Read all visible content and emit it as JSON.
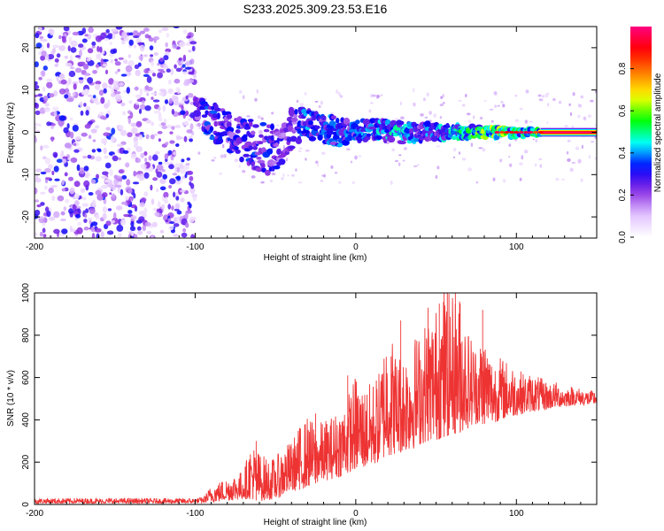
{
  "title": "S233.2025.309.23.53.E16",
  "chart_data": [
    {
      "type": "heatmap",
      "xlabel": "Height of straight line (km)",
      "ylabel": "Frequency (Hz)",
      "xlim": [
        -200,
        150
      ],
      "ylim": [
        -25,
        25
      ],
      "x_ticks": [
        -200,
        -100,
        0,
        100
      ],
      "y_ticks": [
        -20,
        -10,
        0,
        10,
        20
      ],
      "colorbar": {
        "label": "Normalized spectral amplitude",
        "range": [
          0,
          1
        ],
        "ticks": [
          "0.0",
          "0.2",
          "0.4",
          "0.6",
          "0.8"
        ],
        "colors": [
          "#ffffff",
          "#e0c0ff",
          "#8a2be2",
          "#0000ff",
          "#00ffff",
          "#00ff00",
          "#ffff00",
          "#ff8000",
          "#ff0000",
          "#ff0080"
        ]
      },
      "noise_region": {
        "x_range": [
          -200,
          -100
        ],
        "freq_range": [
          -25,
          25
        ],
        "amplitude": "0.0-0.3"
      },
      "signal_trace": {
        "x": [
          -100,
          -90,
          -80,
          -70,
          -60,
          -50,
          -40,
          -30,
          -20,
          -10,
          0,
          10,
          20,
          30,
          40,
          50,
          60,
          70,
          80,
          90,
          100,
          110,
          120,
          130,
          140,
          150
        ],
        "freq_center": [
          5,
          3,
          0,
          -2,
          -4,
          -3,
          1,
          2,
          1,
          0,
          0,
          1,
          0,
          0,
          0,
          0,
          0,
          0,
          0,
          0,
          0,
          0,
          0,
          0,
          0,
          0
        ],
        "freq_width": [
          4,
          5,
          6,
          7,
          8,
          8,
          6,
          4,
          4,
          4,
          3,
          3,
          3,
          3,
          2.5,
          2.5,
          2,
          2,
          1.5,
          1.5,
          1.2,
          1,
          0.8,
          0.8,
          0.8,
          0.8
        ],
        "peak_amp": [
          0.35,
          0.4,
          0.35,
          0.35,
          0.4,
          0.35,
          0.3,
          0.45,
          0.4,
          0.45,
          0.4,
          0.45,
          0.5,
          0.5,
          0.4,
          0.45,
          0.5,
          0.6,
          0.65,
          0.7,
          0.6,
          0.6,
          0.9,
          1.0,
          1.0,
          1.0
        ]
      }
    },
    {
      "type": "line",
      "xlabel": "Height of straight line (km)",
      "ylabel": "SNR (10 * v/v)",
      "xlim": [
        -200,
        150
      ],
      "ylim": [
        0,
        1000
      ],
      "x_ticks": [
        -200,
        -100,
        0,
        100
      ],
      "y_ticks": [
        0,
        200,
        400,
        600,
        800,
        1000
      ],
      "color": "#ee3333",
      "series": [
        {
          "x": [
            -200,
            -180,
            -160,
            -140,
            -120,
            -100,
            -95,
            -90,
            -85,
            -80,
            -75,
            -70,
            -65,
            -60,
            -55,
            -50,
            -45,
            -40,
            -35,
            -30,
            -25,
            -20,
            -15,
            -10,
            -5,
            0,
            5,
            10,
            15,
            20,
            25,
            30,
            35,
            40,
            45,
            50,
            55,
            60,
            65,
            70,
            75,
            80,
            85,
            90,
            95,
            100,
            105,
            110,
            115,
            120,
            125,
            130,
            135,
            140,
            145,
            150
          ],
          "lower": [
            5,
            5,
            5,
            5,
            5,
            5,
            8,
            10,
            15,
            18,
            20,
            25,
            25,
            15,
            20,
            25,
            40,
            60,
            70,
            80,
            100,
            110,
            120,
            130,
            150,
            160,
            170,
            180,
            200,
            230,
            240,
            250,
            260,
            280,
            300,
            300,
            320,
            330,
            340,
            360,
            380,
            380,
            380,
            400,
            410,
            420,
            430,
            440,
            440,
            450,
            460,
            460,
            470,
            470,
            470,
            475
          ],
          "upper": [
            30,
            30,
            30,
            30,
            30,
            30,
            35,
            90,
            110,
            130,
            150,
            160,
            300,
            250,
            220,
            220,
            280,
            300,
            370,
            420,
            380,
            400,
            420,
            460,
            520,
            620,
            560,
            580,
            640,
            900,
            720,
            740,
            800,
            820,
            900,
            940,
            1000,
            1000,
            1000,
            840,
            760,
            820,
            700,
            700,
            680,
            650,
            620,
            620,
            600,
            580,
            580,
            560,
            560,
            550,
            540,
            540
          ],
          "spikes": [
            [
              -62,
              300
            ],
            [
              -35,
              360
            ],
            [
              -25,
              430
            ],
            [
              -5,
              610
            ],
            [
              22,
              700
            ],
            [
              28,
              870
            ],
            [
              45,
              930
            ],
            [
              52,
              950
            ],
            [
              55,
              1000
            ],
            [
              57,
              1000
            ],
            [
              62,
              1000
            ],
            [
              65,
              950
            ],
            [
              79,
              920
            ]
          ]
        }
      ]
    }
  ]
}
